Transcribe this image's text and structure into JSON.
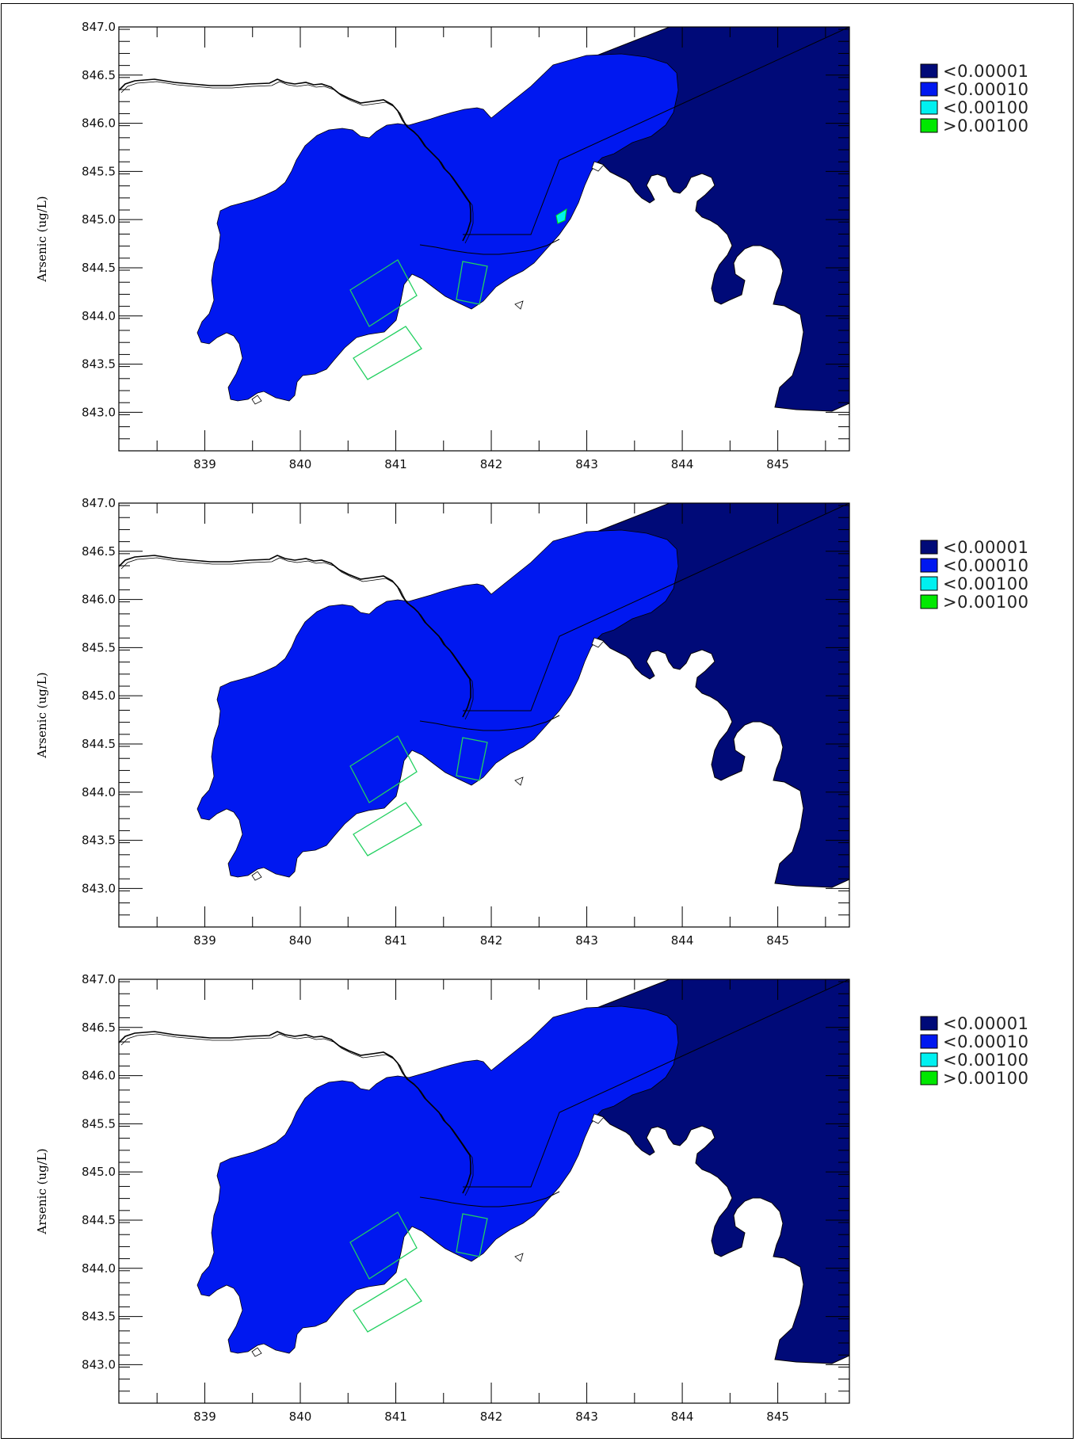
{
  "chart_data": [
    {
      "type": "heatmap",
      "ylabel": "Arsenic (ug/L)",
      "xlim": [
        838.1,
        845.75
      ],
      "ylim": [
        842.6,
        847.0
      ],
      "x_ticks": [
        "839",
        "840",
        "841",
        "842",
        "843",
        "844",
        "845"
      ],
      "y_ticks": [
        "847.0",
        "846.5",
        "846.0",
        "845.5",
        "845.0",
        "844.5",
        "844.0",
        "843.5",
        "843.0"
      ],
      "legend": [
        {
          "label": "<0.00001",
          "color": "#000a78"
        },
        {
          "label": "<0.00010",
          "color": "#0018f0"
        },
        {
          "label": "<0.00100",
          "color": "#00f0f0"
        },
        {
          "label": ">0.00100",
          "color": "#00e800"
        }
      ]
    },
    {
      "type": "heatmap",
      "ylabel": "Arsenic (ug/L)",
      "xlim": [
        838.1,
        845.75
      ],
      "ylim": [
        842.6,
        847.0
      ],
      "x_ticks": [
        "839",
        "840",
        "841",
        "842",
        "843",
        "844",
        "845"
      ],
      "y_ticks": [
        "847.0",
        "846.5",
        "846.0",
        "845.5",
        "845.0",
        "844.5",
        "844.0",
        "843.5",
        "843.0"
      ],
      "legend": [
        {
          "label": "<0.00001",
          "color": "#000a78"
        },
        {
          "label": "<0.00010",
          "color": "#0018f0"
        },
        {
          "label": "<0.00100",
          "color": "#00f0f0"
        },
        {
          "label": ">0.00100",
          "color": "#00e800"
        }
      ]
    },
    {
      "type": "heatmap",
      "ylabel": "Arsenic (ug/L)",
      "xlim": [
        838.1,
        845.75
      ],
      "ylim": [
        842.6,
        847.0
      ],
      "x_ticks": [
        "839",
        "840",
        "841",
        "842",
        "843",
        "844",
        "845"
      ],
      "y_ticks": [
        "847.0",
        "846.5",
        "846.0",
        "845.5",
        "845.0",
        "844.5",
        "844.0",
        "843.5",
        "843.0"
      ],
      "legend": [
        {
          "label": "<0.00001",
          "color": "#000a78"
        },
        {
          "label": "<0.00010",
          "color": "#0018f0"
        },
        {
          "label": "<0.00100",
          "color": "#00f0f0"
        },
        {
          "label": ">0.00100",
          "color": "#00e800"
        }
      ]
    }
  ]
}
